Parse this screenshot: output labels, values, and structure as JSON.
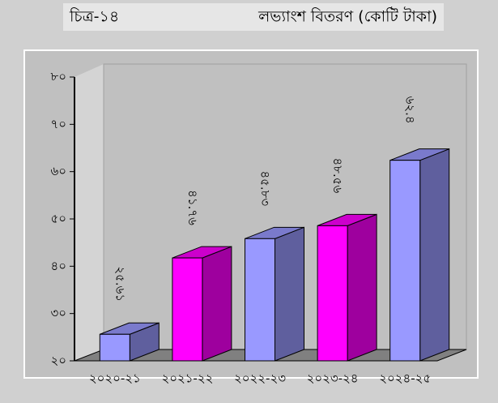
{
  "chart_data": {
    "type": "bar3d",
    "title": "চিত্র-১৪",
    "subtitle": "লভ্যাংশ বিতরণ (কোটি টাকা)",
    "categories": [
      "২০২০-২১",
      "২০২১-২২",
      "২০২২-২৩",
      "২০২৩-২৪",
      "২০২৪-২৫"
    ],
    "values": [
      25.61,
      41.76,
      45.83,
      48.56,
      62.4
    ],
    "value_labels": [
      "২৫.৬১",
      "৪১.৭৬",
      "৪৫.৮৩",
      "৪৮.৫৬",
      "৬২.৪"
    ],
    "colors": [
      "#9999ff",
      "#ff00ff",
      "#9999ff",
      "#ff00ff",
      "#9999ff"
    ],
    "ylim": [
      20,
      80
    ],
    "yticks": [
      {
        "value": 20,
        "label": "২০"
      },
      {
        "value": 30,
        "label": "৩০"
      },
      {
        "value": 40,
        "label": "৪০"
      },
      {
        "value": 50,
        "label": "৫০"
      },
      {
        "value": 60,
        "label": "৬০"
      },
      {
        "value": 70,
        "label": "৭০"
      },
      {
        "value": 80,
        "label": "৮০"
      }
    ]
  }
}
